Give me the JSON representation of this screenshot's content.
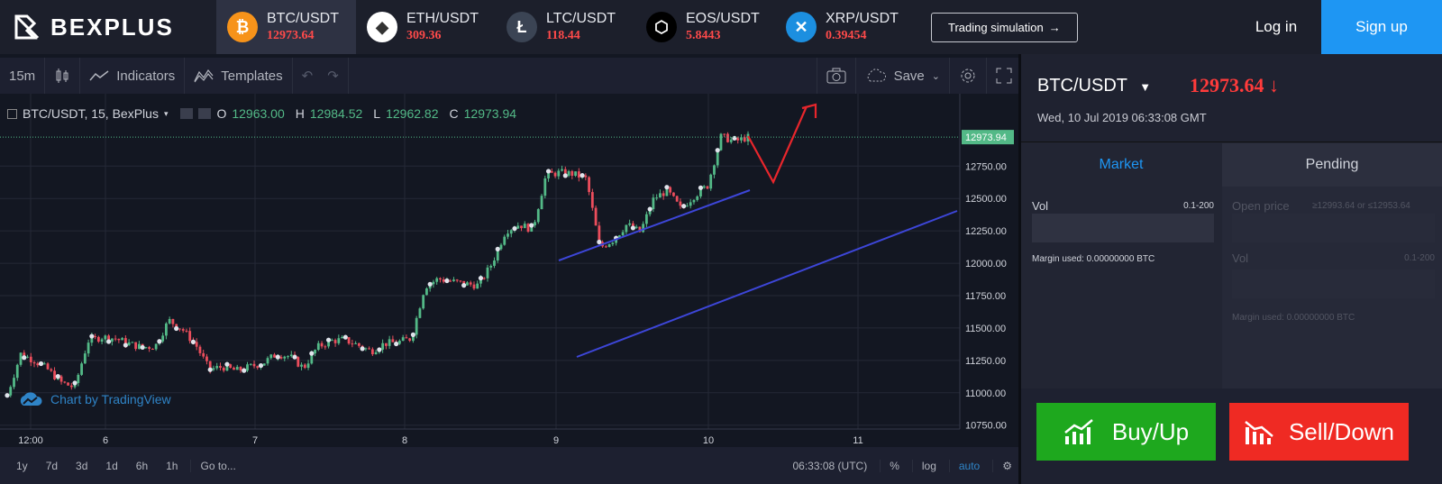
{
  "brand": {
    "name": "BEXPLUS"
  },
  "tickers": [
    {
      "symbol": "BTC/USDT",
      "price": "12973.64",
      "icon": "bitcoin-icon",
      "color": "#f7931a",
      "glyph": "₿",
      "active": true
    },
    {
      "symbol": "ETH/USDT",
      "price": "309.36",
      "icon": "ethereum-icon",
      "color": "#ffffff",
      "glyph": "◆",
      "active": false
    },
    {
      "symbol": "LTC/USDT",
      "price": "118.44",
      "icon": "litecoin-icon",
      "color": "#3b4454",
      "glyph": "Ł",
      "active": false
    },
    {
      "symbol": "EOS/USDT",
      "price": "5.8443",
      "icon": "eos-icon",
      "color": "#000000",
      "glyph": "⬡",
      "active": false
    },
    {
      "symbol": "XRP/USDT",
      "price": "0.39454",
      "icon": "ripple-icon",
      "color": "#1c8fe0",
      "glyph": "✕",
      "active": false
    }
  ],
  "header": {
    "simulation_label": "Trading simulation",
    "login_label": "Log in",
    "signup_label": "Sign up"
  },
  "chart_toolbar": {
    "interval": "15m",
    "indicators_label": "Indicators",
    "templates_label": "Templates",
    "save_label": "Save"
  },
  "chart": {
    "legend_symbol": "BTC/USDT, 15, BexPlus",
    "open_label": "O",
    "open": "12963.00",
    "high_label": "H",
    "high": "12984.52",
    "low_label": "L",
    "low": "12962.82",
    "close_label": "C",
    "close": "12973.94",
    "watermark": "Chart by TradingView"
  },
  "chart_data": {
    "type": "candlestick",
    "title": "BTC/USDT, 15, BexPlus",
    "last_price": 12973.94,
    "y_ticks": [
      10750,
      11000,
      11250,
      11500,
      11750,
      12000,
      12250,
      12500,
      12750
    ],
    "ylim": [
      10720,
      13100
    ],
    "x_ticks": [
      "12:00",
      "6",
      "7",
      "8",
      "9",
      "10",
      "11"
    ],
    "close_path": [
      [
        0,
        10980
      ],
      [
        1,
        11300
      ],
      [
        2,
        11250
      ],
      [
        3,
        11180
      ],
      [
        4,
        11080
      ],
      [
        5,
        11040
      ],
      [
        6,
        11400
      ],
      [
        7,
        11430
      ],
      [
        8,
        11420
      ],
      [
        9,
        11380
      ],
      [
        10,
        11350
      ],
      [
        11,
        11360
      ],
      [
        12,
        11560
      ],
      [
        13,
        11490
      ],
      [
        14,
        11370
      ],
      [
        15,
        11180
      ],
      [
        16,
        11200
      ],
      [
        17,
        11170
      ],
      [
        18,
        11200
      ],
      [
        19,
        11230
      ],
      [
        20,
        11300
      ],
      [
        21,
        11280
      ],
      [
        22,
        11190
      ],
      [
        23,
        11350
      ],
      [
        24,
        11400
      ],
      [
        25,
        11410
      ],
      [
        26,
        11370
      ],
      [
        27,
        11320
      ],
      [
        28,
        11380
      ],
      [
        29,
        11390
      ],
      [
        30,
        11420
      ],
      [
        31,
        11820
      ],
      [
        32,
        11880
      ],
      [
        33,
        11860
      ],
      [
        34,
        11840
      ],
      [
        35,
        11830
      ],
      [
        36,
        12000
      ],
      [
        37,
        12250
      ],
      [
        38,
        12300
      ],
      [
        39,
        12260
      ],
      [
        40,
        12680
      ],
      [
        41,
        12700
      ],
      [
        42,
        12690
      ],
      [
        43,
        12650
      ],
      [
        44,
        12120
      ],
      [
        45,
        12180
      ],
      [
        46,
        12300
      ],
      [
        47,
        12240
      ],
      [
        48,
        12500
      ],
      [
        49,
        12560
      ],
      [
        50,
        12420
      ],
      [
        51,
        12520
      ],
      [
        52,
        12600
      ],
      [
        53,
        12980
      ],
      [
        54,
        12940
      ],
      [
        55,
        12973
      ]
    ],
    "channel": {
      "upper": [
        [
          620,
          185
        ],
        [
          832,
          107
        ]
      ],
      "lower": [
        [
          640,
          292
        ],
        [
          1062,
          130
        ]
      ],
      "color": "#3d46d8"
    },
    "projection_color": "#e8262c"
  },
  "bottom_bar": {
    "ranges": [
      "1y",
      "7d",
      "3d",
      "1d",
      "6h",
      "1h"
    ],
    "goto_label": "Go to...",
    "time": "06:33:08 (UTC)",
    "percent_label": "%",
    "log_label": "log",
    "auto_label": "auto"
  },
  "panel": {
    "pair": "BTC/USDT",
    "price": "12973.64",
    "datetime": "Wed, 10 Jul 2019 06:33:08 GMT",
    "tab_market": "Market",
    "tab_pending": "Pending",
    "vol_label": "Vol",
    "vol_range": "0.1-200",
    "margin_used": "Margin used: 0.00000000 BTC",
    "open_price_label": "Open price",
    "open_price_range": "≥12993.64 or ≤12953.64",
    "buy_label": "Buy/Up",
    "sell_label": "Sell/Down"
  }
}
